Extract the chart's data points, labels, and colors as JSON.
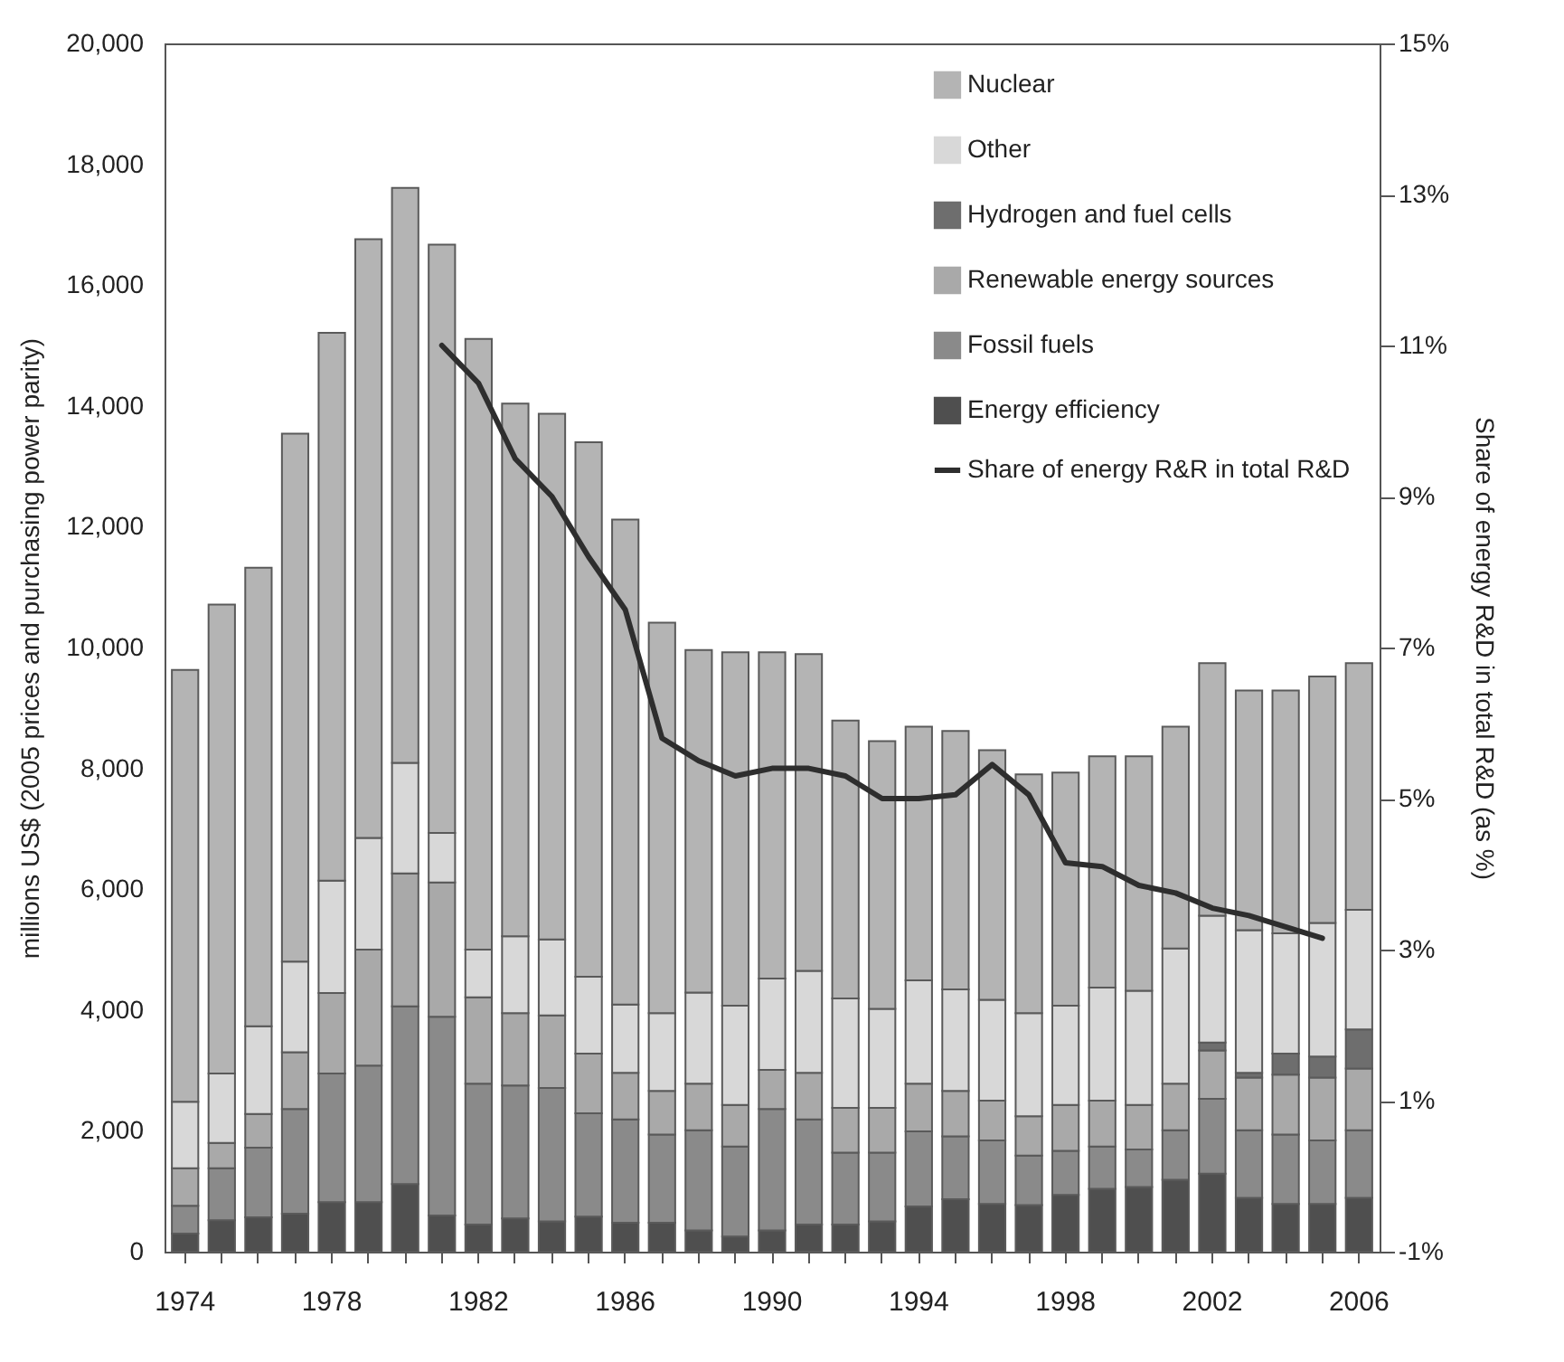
{
  "chart_data": {
    "type": "bar",
    "stacked": true,
    "ylabel": "millions US$ (2005 prices and purchasing power parity)",
    "y2label": "Share of energy R&D in total R&D (as %)",
    "categories": [
      "1974",
      null,
      null,
      null,
      "1978",
      null,
      null,
      null,
      "1982",
      null,
      null,
      null,
      "1986",
      null,
      null,
      null,
      "1990",
      null,
      null,
      null,
      "1994",
      null,
      null,
      null,
      "1998",
      null,
      null,
      null,
      "2002",
      null,
      null,
      null,
      "2006"
    ],
    "series": [
      {
        "name": "Energy efficiency",
        "color": "#4f4f4f",
        "values": [
          300,
          520,
          570,
          630,
          820,
          820,
          1120,
          600,
          450,
          550,
          500,
          580,
          480,
          480,
          350,
          250,
          350,
          450,
          450,
          500,
          750,
          870,
          790,
          770,
          940,
          1040,
          1070,
          1190,
          1290,
          890,
          790,
          790,
          890
        ]
      },
      {
        "name": "Fossil fuels",
        "color": "#8a8a8a",
        "values": [
          460,
          860,
          1150,
          1730,
          2130,
          2260,
          2940,
          3290,
          2330,
          2200,
          2210,
          1710,
          1710,
          1460,
          1660,
          1490,
          2010,
          1740,
          1190,
          1140,
          1240,
          1040,
          1050,
          820,
          730,
          700,
          620,
          820,
          1240,
          1120,
          1150,
          1050,
          1120
        ]
      },
      {
        "name": "Renewable energy sources",
        "color": "#a9a9a9",
        "values": [
          620,
          420,
          560,
          940,
          1330,
          1920,
          2200,
          2220,
          1430,
          1200,
          1200,
          990,
          770,
          720,
          770,
          690,
          650,
          770,
          740,
          740,
          790,
          750,
          660,
          650,
          760,
          760,
          740,
          770,
          800,
          870,
          990,
          1040,
          1020
        ]
      },
      {
        "name": "Hydrogen and fuel cells",
        "color": "#6e6e6e",
        "values": [
          null,
          null,
          null,
          null,
          null,
          null,
          null,
          null,
          null,
          null,
          null,
          null,
          null,
          null,
          null,
          null,
          null,
          null,
          null,
          null,
          null,
          null,
          null,
          null,
          null,
          null,
          null,
          null,
          130,
          80,
          350,
          350,
          650
        ]
      },
      {
        "name": "Other",
        "color": "#d8d8d8",
        "values": [
          1100,
          1150,
          1450,
          1500,
          1860,
          1850,
          1830,
          820,
          790,
          1270,
          1260,
          1270,
          1130,
          1290,
          1510,
          1640,
          1510,
          1690,
          1810,
          1640,
          1710,
          1680,
          1670,
          1710,
          1640,
          1870,
          1890,
          2240,
          2100,
          2360,
          1990,
          2210,
          1980
        ]
      },
      {
        "name": "Nuclear",
        "color": "#b4b4b4",
        "values": [
          7150,
          7760,
          7590,
          8740,
          9070,
          9910,
          9520,
          9740,
          10110,
          8820,
          8700,
          8850,
          8030,
          6460,
          5670,
          5850,
          5400,
          5240,
          4600,
          4430,
          4200,
          4280,
          4130,
          3950,
          3860,
          3830,
          3880,
          3670,
          4180,
          3970,
          4020,
          4080,
          4080
        ]
      },
      {
        "name": "Share of energy R&R in total R&D",
        "type": "line",
        "axis": "y2",
        "color": "#2e2e2e",
        "values": [
          null,
          null,
          null,
          null,
          null,
          null,
          null,
          11.0,
          10.5,
          9.5,
          9.0,
          8.2,
          7.5,
          5.8,
          5.5,
          5.3,
          5.4,
          5.4,
          5.3,
          5.0,
          5.0,
          5.05,
          5.45,
          5.05,
          4.15,
          4.1,
          3.85,
          3.75,
          3.55,
          3.45,
          3.3,
          3.15,
          null
        ]
      }
    ],
    "ylim": [
      0,
      20000
    ],
    "yticks": [
      0,
      {
        "value": 2000,
        "label": "2,000"
      },
      {
        "value": 4000,
        "label": "4,000"
      },
      {
        "value": 6000,
        "label": "6,000"
      },
      {
        "value": 8000,
        "label": "8,000"
      },
      {
        "value": 10000,
        "label": "10,000"
      },
      {
        "value": 12000,
        "label": "12,000"
      },
      {
        "value": 14000,
        "label": "14,000"
      },
      {
        "value": 16000,
        "label": "16,000"
      },
      {
        "value": 18000,
        "label": "18,000"
      },
      {
        "value": 20000,
        "label": "20,000"
      }
    ],
    "y2lim": [
      -1,
      15
    ],
    "y2ticks": [
      {
        "value": -1,
        "label": "-1%"
      },
      {
        "value": 1,
        "label": "1%"
      },
      {
        "value": 3,
        "label": "3%"
      },
      {
        "value": 5,
        "label": "5%"
      },
      {
        "value": 7,
        "label": "7%"
      },
      {
        "value": 9,
        "label": "9%"
      },
      {
        "value": 11,
        "label": "11%"
      },
      {
        "value": 13,
        "label": "13%"
      },
      {
        "value": 15,
        "label": "15%"
      }
    ],
    "legend": "top right"
  }
}
